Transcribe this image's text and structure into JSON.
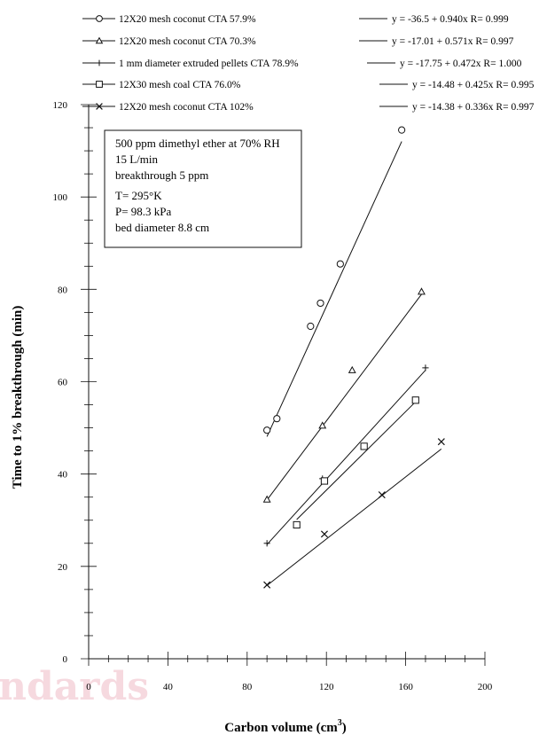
{
  "chart_data": {
    "type": "scatter",
    "xlabel": "Carbon volume (cm",
    "xlabel_superscript": "3",
    "xlabel_suffix": ")",
    "ylabel": "Time to 1% breakthrough (min)",
    "xlim": [
      0,
      200
    ],
    "ylim": [
      0,
      120
    ],
    "x_ticks": [
      0,
      40,
      80,
      120,
      160,
      200
    ],
    "y_ticks": [
      0,
      20,
      40,
      60,
      80,
      100,
      120
    ],
    "grid": false,
    "legend_position": "top",
    "series": [
      {
        "name": "12X20 mesh coconut  CTA 57.9%",
        "marker": "circle",
        "equation": "y = -36.5 + 0.940x  R= 0.999",
        "intercept": -36.5,
        "slope": 0.94,
        "fit_range": [
          90,
          158
        ],
        "points": [
          [
            90,
            49.5
          ],
          [
            95,
            52
          ],
          [
            112,
            72
          ],
          [
            117,
            77
          ],
          [
            127,
            85.5
          ],
          [
            158,
            114.5
          ]
        ]
      },
      {
        "name": "12X20 mesh coconut  CTA 70.3%",
        "marker": "triangle",
        "equation": "y = -17.01 + 0.571x  R= 0.997",
        "intercept": -17.01,
        "slope": 0.571,
        "fit_range": [
          90,
          168
        ],
        "points": [
          [
            90,
            34.5
          ],
          [
            118,
            50.5
          ],
          [
            133,
            62.5
          ],
          [
            168,
            79.5
          ]
        ]
      },
      {
        "name": "1 mm diameter extruded pellets  CTA 78.9%",
        "marker": "plus",
        "equation": "y = -17.75 + 0.472x  R= 1.000",
        "intercept": -17.75,
        "slope": 0.472,
        "fit_range": [
          90,
          170
        ],
        "points": [
          [
            90,
            25
          ],
          [
            118,
            39
          ],
          [
            170,
            63
          ]
        ]
      },
      {
        "name": "12X30 mesh coal  CTA 76.0%",
        "marker": "square",
        "equation": "y = -14.48 + 0.425x  R= 0.995",
        "intercept": -14.48,
        "slope": 0.425,
        "fit_range": [
          105,
          165
        ],
        "points": [
          [
            105,
            29
          ],
          [
            119,
            38.5
          ],
          [
            139,
            46
          ],
          [
            165,
            56
          ]
        ]
      },
      {
        "name": "12X20 mesh coconut  CTA 102%",
        "marker": "x",
        "equation": "y = -14.38 + 0.336x  R= 0.997",
        "intercept": -14.38,
        "slope": 0.336,
        "fit_range": [
          90,
          178
        ],
        "points": [
          [
            90,
            16
          ],
          [
            119,
            27
          ],
          [
            148,
            35.5
          ],
          [
            178,
            47
          ]
        ]
      }
    ],
    "annotation_lines": [
      "500 ppm dimethyl ether at 70% RH",
      "15 L/min",
      "breakthrough 5 ppm",
      "T= 295°K",
      "P= 98.3 kPa",
      "bed diameter 8.8 cm"
    ]
  },
  "watermark": "ndards"
}
